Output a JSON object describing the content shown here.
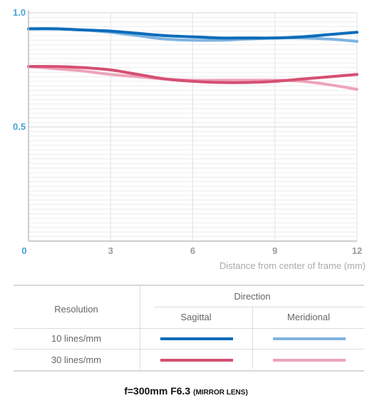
{
  "chart_data": {
    "type": "line",
    "xlabel": "Distance from center of frame (mm)",
    "ylabel": "",
    "xlim": [
      0,
      12
    ],
    "ylim": [
      0,
      1.0
    ],
    "x_ticks": [
      "0",
      "3",
      "6",
      "9",
      "12"
    ],
    "y_ticks": [
      "1.0",
      "0.5"
    ],
    "grid": true,
    "series": [
      {
        "name": "10 lines/mm Sagittal",
        "color": "#0a6cba",
        "x": [
          0,
          1,
          2,
          3,
          4,
          5,
          6,
          7,
          8,
          9,
          10,
          11,
          12
        ],
        "values": [
          0.93,
          0.93,
          0.925,
          0.92,
          0.91,
          0.9,
          0.895,
          0.89,
          0.89,
          0.89,
          0.895,
          0.905,
          0.915
        ]
      },
      {
        "name": "10 lines/mm Meridional",
        "color": "#7fb4e0",
        "x": [
          0,
          1,
          2,
          3,
          4,
          5,
          6,
          7,
          8,
          9,
          10,
          11,
          12
        ],
        "values": [
          0.93,
          0.93,
          0.925,
          0.915,
          0.9,
          0.885,
          0.88,
          0.88,
          0.885,
          0.89,
          0.89,
          0.885,
          0.875
        ]
      },
      {
        "name": "30 lines/mm Sagittal",
        "color": "#d64f72",
        "x": [
          0,
          1,
          2,
          3,
          4,
          5,
          6,
          7,
          8,
          9,
          10,
          11,
          12
        ],
        "values": [
          0.765,
          0.765,
          0.76,
          0.75,
          0.73,
          0.71,
          0.7,
          0.695,
          0.695,
          0.7,
          0.71,
          0.72,
          0.73
        ]
      },
      {
        "name": "30 lines/mm Meridional",
        "color": "#eda4ba",
        "x": [
          0,
          1,
          2,
          3,
          4,
          5,
          6,
          7,
          8,
          9,
          10,
          11,
          12
        ],
        "values": [
          0.765,
          0.755,
          0.745,
          0.73,
          0.72,
          0.71,
          0.705,
          0.705,
          0.705,
          0.705,
          0.7,
          0.685,
          0.665
        ]
      }
    ]
  },
  "legend": {
    "resolution_header": "Resolution",
    "direction_header": "Direction",
    "sagittal": "Sagittal",
    "meridional": "Meridional",
    "rows": [
      {
        "label": "10 lines/mm",
        "sagittal_color": "#0a6cba",
        "meridional_color": "#7fb4e0"
      },
      {
        "label": "30 lines/mm",
        "sagittal_color": "#d64f72",
        "meridional_color": "#eda4ba"
      }
    ]
  },
  "caption": {
    "main": "f=300mm F6.3",
    "small": "(MIRROR LENS)"
  }
}
